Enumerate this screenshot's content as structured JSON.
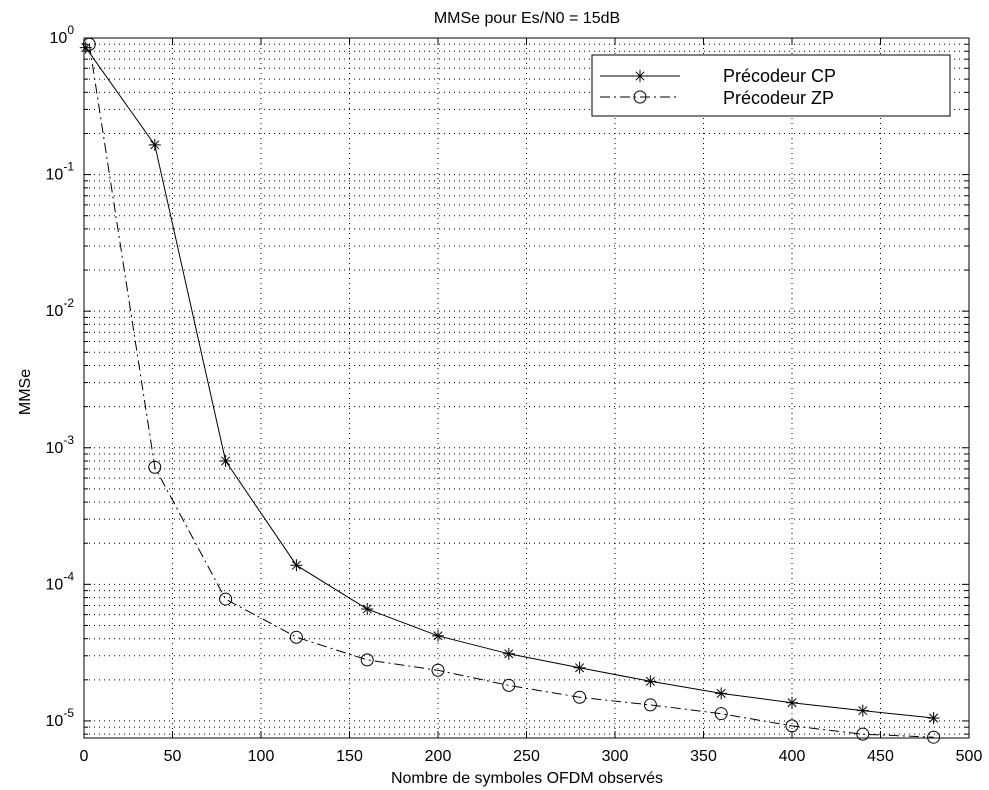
{
  "chart_data": {
    "type": "line",
    "title": "MMSe pour Es/N0 = 15dB",
    "xlabel": "Nombre de symboles OFDM observés",
    "ylabel": "MMSe",
    "xlim": [
      0,
      500
    ],
    "ylim": [
      7.5e-06,
      1
    ],
    "yscale": "log",
    "grid": true,
    "legend_position": "top-right",
    "x_ticks": [
      "0",
      "50",
      "100",
      "150",
      "200",
      "250",
      "300",
      "350",
      "400",
      "450",
      "500"
    ],
    "y_ticks": [
      {
        "base": "10",
        "exp": "0",
        "value": 1
      },
      {
        "base": "10",
        "exp": "-1",
        "value": 0.1
      },
      {
        "base": "10",
        "exp": "-2",
        "value": 0.01
      },
      {
        "base": "10",
        "exp": "-3",
        "value": 0.001
      },
      {
        "base": "10",
        "exp": "-4",
        "value": 0.0001
      },
      {
        "base": "10",
        "exp": "-5",
        "value": 1e-05
      }
    ],
    "x": [
      1,
      40,
      80,
      120,
      160,
      200,
      240,
      280,
      320,
      360,
      400,
      440,
      480
    ],
    "series": [
      {
        "name": "Précodeur CP",
        "marker": "star",
        "line": "solid",
        "color": "#000000",
        "x": [
          1,
          40,
          80,
          120,
          160,
          200,
          240,
          280,
          320,
          360,
          400,
          440,
          480
        ],
        "values": [
          0.85,
          0.165,
          0.0008,
          0.000138,
          6.6e-05,
          4.2e-05,
          3.1e-05,
          2.45e-05,
          1.95e-05,
          1.59e-05,
          1.36e-05,
          1.19e-05,
          1.05e-05
        ]
      },
      {
        "name": "Précodeur ZP",
        "marker": "circle",
        "line": "dashdot",
        "color": "#000000",
        "x": [
          3,
          40,
          80,
          120,
          160,
          200,
          240,
          280,
          320,
          360,
          400,
          440,
          480
        ],
        "values": [
          0.9,
          0.00072,
          7.8e-05,
          4.1e-05,
          2.8e-05,
          2.35e-05,
          1.82e-05,
          1.49e-05,
          1.31e-05,
          1.13e-05,
          9.2e-06,
          8e-06,
          7.6e-06
        ]
      }
    ]
  }
}
